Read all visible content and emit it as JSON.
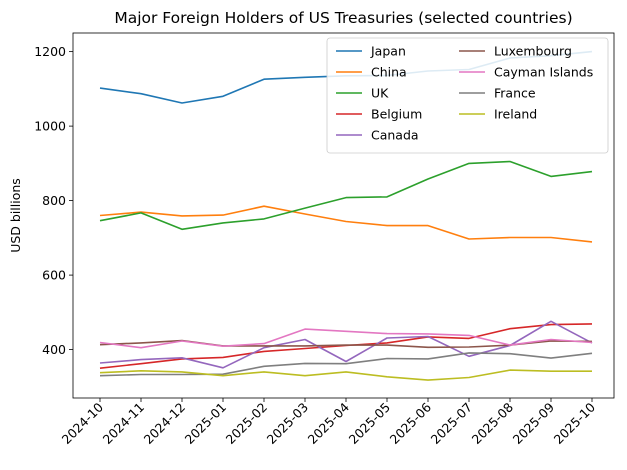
{
  "chart_data": {
    "type": "line",
    "title": "Major Foreign Holders of US Treasuries (selected countries)",
    "xlabel": "",
    "ylabel": "USD billions",
    "x": [
      "2024-10",
      "2024-11",
      "2024-12",
      "2025-01",
      "2025-02",
      "2025-03",
      "2025-04",
      "2025-05",
      "2025-06",
      "2025-07",
      "2025-08",
      "2025-09",
      "2025-10"
    ],
    "ylim": [
      270,
      1250
    ],
    "yticks": [
      400,
      600,
      800,
      1000,
      1200
    ],
    "grid": false,
    "legend": {
      "placement": "top-right",
      "columns": 2
    },
    "series": [
      {
        "name": "Japan",
        "color": "#1f77b4",
        "values": [
          1102,
          1087,
          1062,
          1080,
          1126,
          1131,
          1135,
          1136,
          1148,
          1152,
          1183,
          1189,
          1200
        ]
      },
      {
        "name": "China",
        "color": "#ff7f0e",
        "values": [
          760,
          769,
          759,
          761,
          785,
          764,
          744,
          733,
          733,
          697,
          701,
          701,
          689
        ]
      },
      {
        "name": "UK",
        "color": "#2ca02c",
        "values": [
          746,
          767,
          723,
          740,
          751,
          780,
          808,
          810,
          858,
          900,
          905,
          865,
          878
        ]
      },
      {
        "name": "Belgium",
        "color": "#d62728",
        "values": [
          350,
          362,
          375,
          379,
          395,
          403,
          411,
          418,
          434,
          430,
          456,
          467,
          469
        ]
      },
      {
        "name": "Canada",
        "color": "#9467bd",
        "values": [
          364,
          373,
          378,
          351,
          405,
          427,
          368,
          431,
          435,
          382,
          411,
          476,
          418
        ]
      },
      {
        "name": "Luxembourg",
        "color": "#8c564b",
        "values": [
          413,
          418,
          424,
          410,
          410,
          410,
          412,
          412,
          406,
          407,
          412,
          423,
          422
        ]
      },
      {
        "name": "Cayman Islands",
        "color": "#e377c2",
        "values": [
          419,
          405,
          423,
          409,
          416,
          455,
          449,
          443,
          442,
          438,
          412,
          427,
          419
        ]
      },
      {
        "name": "France",
        "color": "#7f7f7f",
        "values": [
          330,
          333,
          333,
          334,
          355,
          363,
          362,
          376,
          375,
          391,
          389,
          377,
          390
        ]
      },
      {
        "name": "Ireland",
        "color": "#bcbd22",
        "values": [
          338,
          343,
          340,
          330,
          340,
          330,
          340,
          327,
          318,
          325,
          345,
          342,
          342
        ]
      }
    ]
  }
}
